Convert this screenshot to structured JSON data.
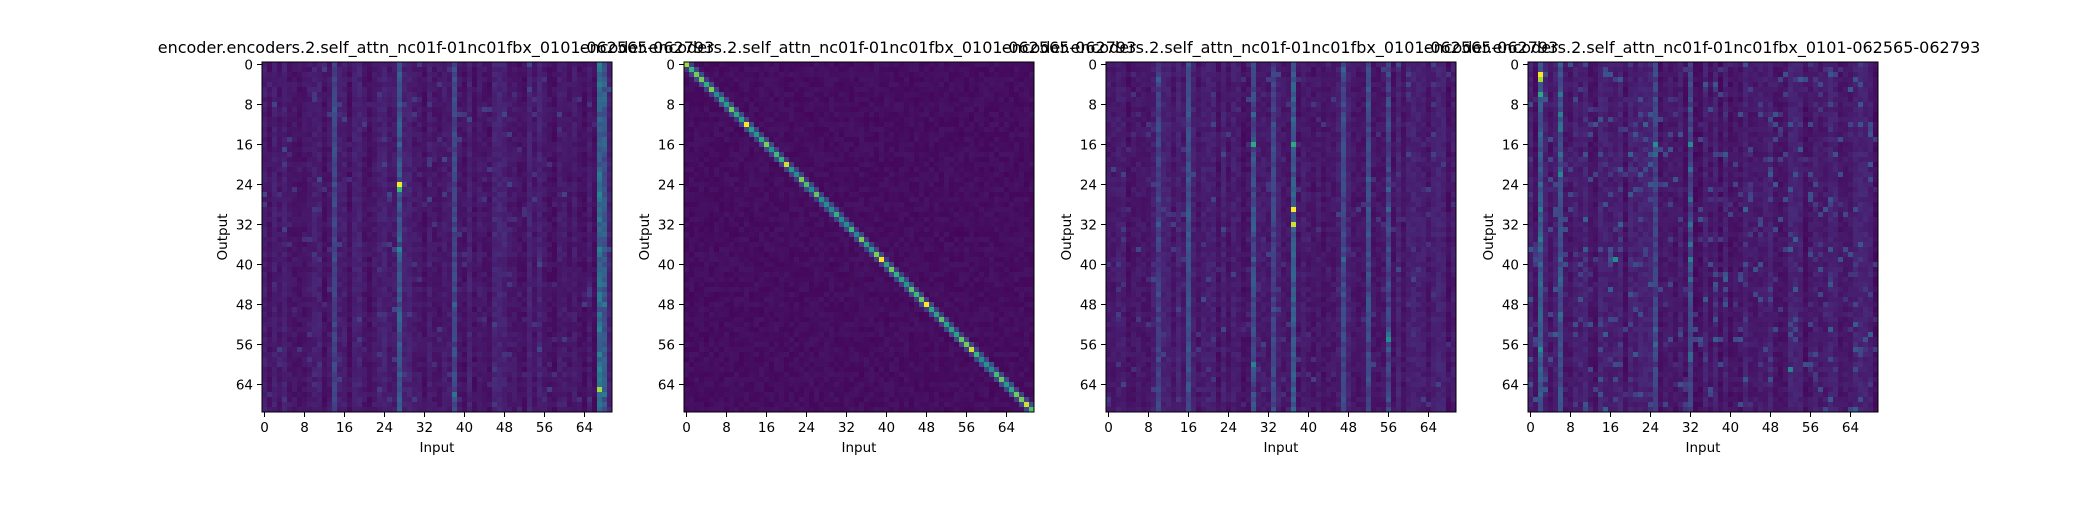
{
  "chart_data": [
    {
      "type": "heatmap",
      "title": "encoder.encoders.2.self_attn_nc01f-01nc01fbx_0101-062565-062793",
      "xlabel": "Input",
      "ylabel": "Output",
      "rows": 70,
      "cols": 70,
      "x_ticks": [
        "0",
        "8",
        "16",
        "24",
        "32",
        "40",
        "48",
        "56",
        "64"
      ],
      "y_ticks": [
        "0",
        "8",
        "16",
        "24",
        "32",
        "40",
        "48",
        "56",
        "64"
      ],
      "x_tick_values": [
        0,
        8,
        16,
        24,
        32,
        40,
        48,
        56,
        64
      ],
      "y_tick_values": [
        0,
        8,
        16,
        24,
        32,
        40,
        48,
        56,
        64
      ],
      "colormap": "viridis",
      "pattern": "vertical-bands",
      "hotspots": [
        {
          "row": 24,
          "col": 27,
          "value": 1.0
        },
        {
          "row": 65,
          "col": 67,
          "value": 0.9
        },
        {
          "row": 25,
          "col": 27,
          "value": 0.75
        },
        {
          "row": 58,
          "col": 67,
          "value": 0.55
        }
      ],
      "bands": [
        {
          "col": 27,
          "strength": 0.35
        },
        {
          "col": 67,
          "strength": 0.4
        },
        {
          "col": 68,
          "strength": 0.3
        },
        {
          "col": 14,
          "strength": 0.18
        },
        {
          "col": 38,
          "strength": 0.2
        }
      ]
    },
    {
      "type": "heatmap",
      "title": "encoder.encoders.2.self_attn_nc01f-01nc01fbx_0101-062565-062793",
      "xlabel": "Input",
      "ylabel": "Output",
      "rows": 70,
      "cols": 70,
      "x_ticks": [
        "0",
        "8",
        "16",
        "24",
        "32",
        "40",
        "48",
        "56",
        "64"
      ],
      "y_ticks": [
        "0",
        "8",
        "16",
        "24",
        "32",
        "40",
        "48",
        "56",
        "64"
      ],
      "x_tick_values": [
        0,
        8,
        16,
        24,
        32,
        40,
        48,
        56,
        64
      ],
      "y_tick_values": [
        0,
        8,
        16,
        24,
        32,
        40,
        48,
        56,
        64
      ],
      "colormap": "viridis",
      "pattern": "diagonal",
      "hotspots": [
        {
          "row": 0,
          "col": 0,
          "value": 0.9
        },
        {
          "row": 12,
          "col": 12,
          "value": 1.0
        },
        {
          "row": 20,
          "col": 20,
          "value": 0.95
        },
        {
          "row": 39,
          "col": 39,
          "value": 1.0
        },
        {
          "row": 48,
          "col": 48,
          "value": 1.0
        },
        {
          "row": 57,
          "col": 57,
          "value": 0.95
        },
        {
          "row": 68,
          "col": 68,
          "value": 0.95
        }
      ],
      "bands": []
    },
    {
      "type": "heatmap",
      "title": "encoder.encoders.2.self_attn_nc01f-01nc01fbx_0101-062565-062793",
      "xlabel": "Input",
      "ylabel": "Output",
      "rows": 70,
      "cols": 70,
      "x_ticks": [
        "0",
        "8",
        "16",
        "24",
        "32",
        "40",
        "48",
        "56",
        "64"
      ],
      "y_ticks": [
        "0",
        "8",
        "16",
        "24",
        "32",
        "40",
        "48",
        "56",
        "64"
      ],
      "x_tick_values": [
        0,
        8,
        16,
        24,
        32,
        40,
        48,
        56,
        64
      ],
      "y_tick_values": [
        0,
        8,
        16,
        24,
        32,
        40,
        48,
        56,
        64
      ],
      "colormap": "viridis",
      "pattern": "vertical-bands",
      "hotspots": [
        {
          "row": 29,
          "col": 37,
          "value": 1.0
        },
        {
          "row": 32,
          "col": 37,
          "value": 0.95
        },
        {
          "row": 16,
          "col": 29,
          "value": 0.7
        },
        {
          "row": 16,
          "col": 37,
          "value": 0.7
        },
        {
          "row": 55,
          "col": 56,
          "value": 0.6
        },
        {
          "row": 60,
          "col": 29,
          "value": 0.55
        }
      ],
      "bands": [
        {
          "col": 10,
          "strength": 0.2
        },
        {
          "col": 16,
          "strength": 0.22
        },
        {
          "col": 29,
          "strength": 0.28
        },
        {
          "col": 33,
          "strength": 0.2
        },
        {
          "col": 37,
          "strength": 0.3
        },
        {
          "col": 47,
          "strength": 0.2
        },
        {
          "col": 52,
          "strength": 0.22
        },
        {
          "col": 56,
          "strength": 0.22
        }
      ]
    },
    {
      "type": "heatmap",
      "title": "encoder.encoders.2.self_attn_nc01f-01nc01fbx_0101-062565-062793",
      "xlabel": "Input",
      "ylabel": "Output",
      "rows": 70,
      "cols": 70,
      "x_ticks": [
        "0",
        "8",
        "16",
        "24",
        "32",
        "40",
        "48",
        "56",
        "64"
      ],
      "y_ticks": [
        "0",
        "8",
        "16",
        "24",
        "32",
        "40",
        "48",
        "56",
        "64"
      ],
      "x_tick_values": [
        0,
        8,
        16,
        24,
        32,
        40,
        48,
        56,
        64
      ],
      "y_tick_values": [
        0,
        8,
        16,
        24,
        32,
        40,
        48,
        56,
        64
      ],
      "colormap": "viridis",
      "pattern": "scattered",
      "hotspots": [
        {
          "row": 2,
          "col": 2,
          "value": 1.0
        },
        {
          "row": 3,
          "col": 2,
          "value": 0.9
        },
        {
          "row": 6,
          "col": 2,
          "value": 0.7
        },
        {
          "row": 16,
          "col": 25,
          "value": 0.6
        },
        {
          "row": 16,
          "col": 32,
          "value": 0.6
        },
        {
          "row": 39,
          "col": 17,
          "value": 0.6
        },
        {
          "row": 61,
          "col": 52,
          "value": 0.55
        }
      ],
      "bands": [
        {
          "col": 2,
          "strength": 0.3
        },
        {
          "col": 6,
          "strength": 0.25
        },
        {
          "col": 25,
          "strength": 0.2
        },
        {
          "col": 32,
          "strength": 0.2
        }
      ]
    }
  ]
}
